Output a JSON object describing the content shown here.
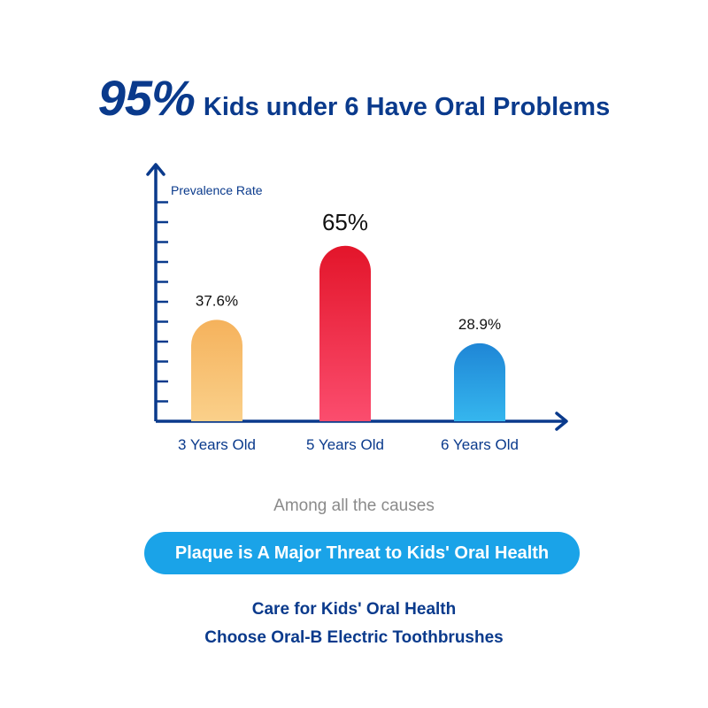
{
  "header": {
    "big_text": "95%",
    "rest_text": "Kids under 6 Have Oral Problems"
  },
  "chart_data": {
    "type": "bar",
    "ylabel": "Prevalence Rate",
    "xlabel": "",
    "categories": [
      "3 Years Old",
      "5 Years Old",
      "6 Years Old"
    ],
    "values": [
      37.6,
      65,
      28.9
    ],
    "data_labels": [
      "37.6%",
      "65%",
      "28.9%"
    ],
    "ylim": [
      0,
      80
    ],
    "grid": false,
    "legend": "none",
    "bar_gradients": [
      [
        "#f5b25c",
        "#fad08a"
      ],
      [
        "#e3152a",
        "#fb4d6e"
      ],
      [
        "#1f86d6",
        "#35b6ee"
      ]
    ],
    "axis_color": "#0a3a8c"
  },
  "footer": {
    "among": "Among all the causes",
    "pill": "Plaque is A Major Threat to Kids' Oral Health",
    "line1": "Care for Kids' Oral Health",
    "line2": "Choose Oral-B Electric Toothbrushes"
  }
}
